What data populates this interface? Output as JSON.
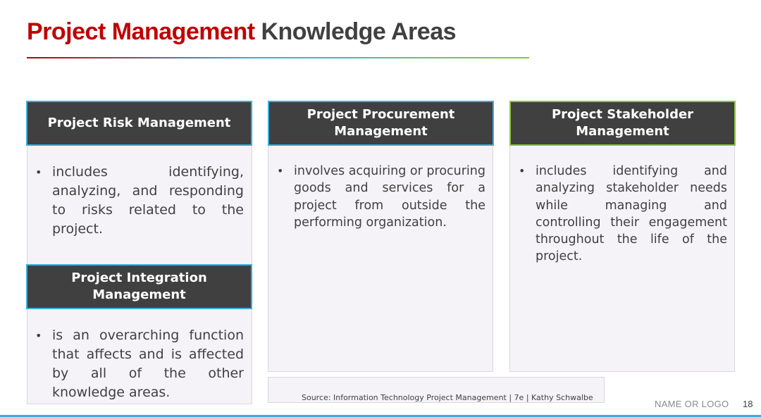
{
  "slide": {
    "title_part1": "Project Management",
    "title_part2": "Knowledge Areas"
  },
  "cards": {
    "risk": {
      "heading": "Project Risk Management",
      "bullet": "includes identifying, analyzing, and responding to risks related to the project."
    },
    "integration": {
      "heading_line1": "Project Integration",
      "heading_line2": "Management",
      "bullet": "is an overarching function that affects and is affected by all of the other knowledge areas."
    },
    "procurement": {
      "heading_line1": "Project Procurement",
      "heading_line2": "Management",
      "bullet": "involves acquiring or procuring goods and services for a project from outside the performing organization."
    },
    "stakeholder": {
      "heading_line1": "Project Stakeholder",
      "heading_line2": "Management",
      "bullet": "includes identifying and analyzing stakeholder needs while managing and controlling their engagement throughout the life of the project."
    }
  },
  "footer": {
    "source": "Source: Information Technology Project Management | 7e | Kathy Schwalbe",
    "logo": "NAME OR LOGO",
    "page_number": "18"
  },
  "colors": {
    "title_red": "#c00000",
    "header_dark": "#404040",
    "accent_blue": "#3aaee0",
    "accent_green": "#8cc63f"
  }
}
